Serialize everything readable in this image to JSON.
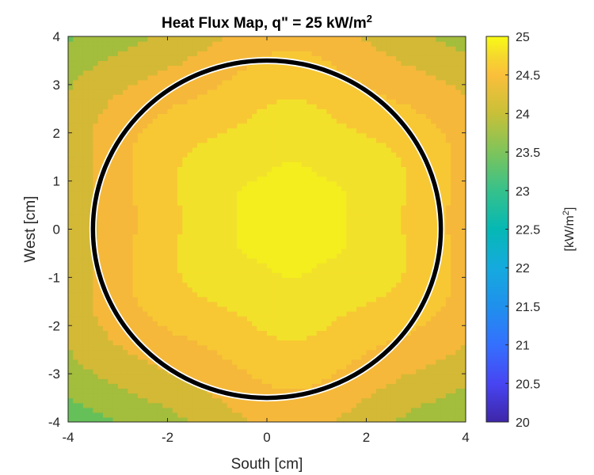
{
  "chart_data": {
    "type": "heatmap",
    "title": "Heat Flux Map, q\" = 25 kW/m",
    "title_superscript": "2",
    "xlabel": "South [cm]",
    "ylabel": "West [cm]",
    "xlim": [
      -4,
      4
    ],
    "ylim": [
      -4,
      4
    ],
    "xticks": [
      -4,
      -2,
      0,
      2,
      4
    ],
    "yticks": [
      -4,
      -3,
      -2,
      -1,
      0,
      1,
      2,
      3,
      4
    ],
    "xtick_labels": [
      "-4",
      "-2",
      "0",
      "2",
      "4"
    ],
    "ytick_labels": [
      "-4",
      "-3",
      "-2",
      "-1",
      "0",
      "1",
      "2",
      "3",
      "4"
    ],
    "colorbar": {
      "label": "[kW/m",
      "label_superscript": "2",
      "label_suffix": "]",
      "range": [
        20,
        25
      ],
      "ticks": [
        20,
        20.5,
        21,
        21.5,
        22,
        22.5,
        23,
        23.5,
        24,
        24.5,
        25
      ],
      "tick_labels": [
        "20",
        "20.5",
        "21",
        "21.5",
        "22",
        "22.5",
        "23",
        "23.5",
        "24",
        "24.5",
        "25"
      ],
      "colormap": "parula"
    },
    "contour_levels": [
      {
        "level": 23.5,
        "color": "#66c059"
      },
      {
        "level": 23.75,
        "color": "#a3bd3c"
      },
      {
        "level": 24.0,
        "color": "#d3b936"
      },
      {
        "level": 24.25,
        "color": "#f5b83a"
      },
      {
        "level": 24.5,
        "color": "#f7c834"
      },
      {
        "level": 24.75,
        "color": "#f2e12a"
      },
      {
        "level": 25.0,
        "color": "#f5ee1e"
      }
    ],
    "field": {
      "peak_value": 25.0,
      "peak_center": [
        0.5,
        0.2
      ],
      "corner_value": 23.4,
      "notes": "approximately radial flux distribution, highest near center, lowest at corners"
    },
    "overlay_circle": {
      "center": [
        0,
        0
      ],
      "radius": 3.5,
      "color": "#000000"
    }
  }
}
